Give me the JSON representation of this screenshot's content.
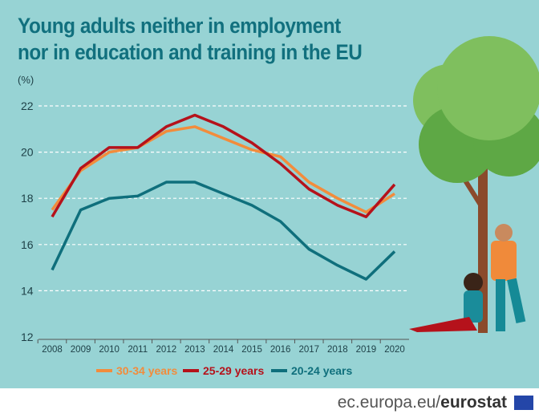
{
  "chart_data": {
    "type": "line",
    "title": "Young adults neither in employment nor in education and training in the EU",
    "ylabel": "(%)",
    "ylim": [
      12,
      22
    ],
    "yticks": [
      12,
      14,
      16,
      18,
      20,
      22
    ],
    "grid": true,
    "legend_position": "bottom",
    "categories": [
      "2008",
      "2009",
      "2010",
      "2011",
      "2012",
      "2013",
      "2014",
      "2015",
      "2016",
      "2017",
      "2018",
      "2019",
      "2020"
    ],
    "series": [
      {
        "name": "30-34 years",
        "color": "#f28c3c",
        "values": [
          17.5,
          19.2,
          20.0,
          20.2,
          20.9,
          21.1,
          20.6,
          20.1,
          19.8,
          18.7,
          18.0,
          17.4,
          18.2
        ]
      },
      {
        "name": "25-29 years",
        "color": "#b5121b",
        "values": [
          17.2,
          19.3,
          20.2,
          20.2,
          21.1,
          21.6,
          21.1,
          20.4,
          19.5,
          18.4,
          17.7,
          17.2,
          18.6
        ]
      },
      {
        "name": "20-24 years",
        "color": "#0f6f7c",
        "values": [
          14.9,
          17.5,
          18.0,
          18.1,
          18.7,
          18.7,
          18.2,
          17.7,
          17.0,
          15.8,
          15.1,
          14.5,
          15.7
        ]
      }
    ]
  },
  "footer": {
    "domain": "ec.europa.eu/",
    "brand": "eurostat"
  }
}
